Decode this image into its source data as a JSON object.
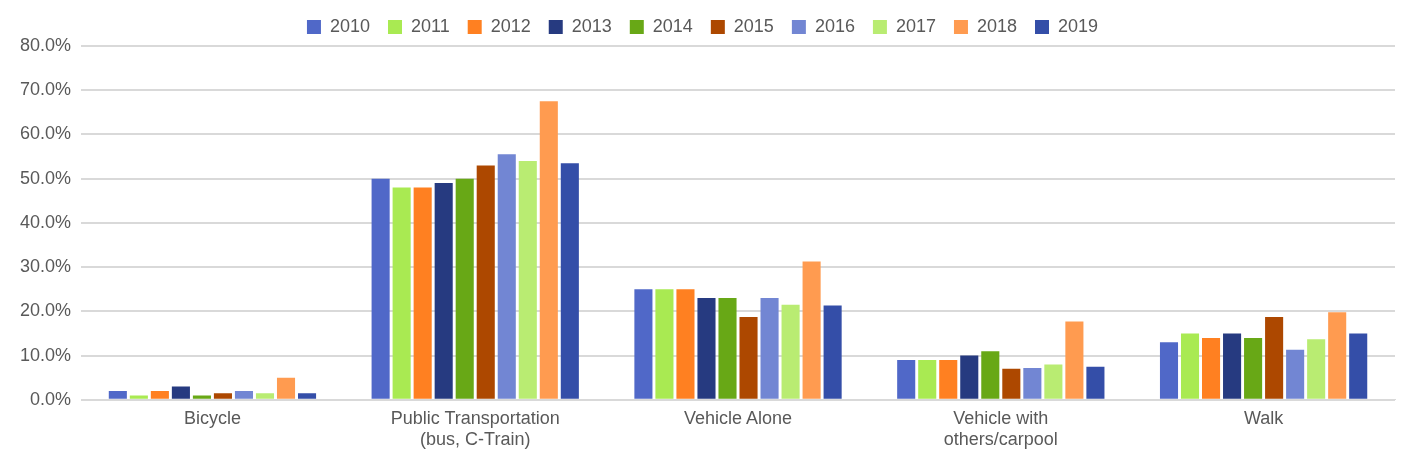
{
  "chart_data": {
    "type": "bar",
    "categories": [
      "Bicycle",
      "Public Transportation (bus, C-Train)",
      "Vehicle Alone",
      "Vehicle with others/carpool",
      "Walk"
    ],
    "series": [
      {
        "name": "2010",
        "color": "#5068c8",
        "values": [
          2,
          50,
          25,
          9,
          13
        ]
      },
      {
        "name": "2011",
        "color": "#a9ea52",
        "values": [
          1,
          48,
          25,
          9,
          15
        ]
      },
      {
        "name": "2012",
        "color": "#ff8021",
        "values": [
          2,
          48,
          25,
          9,
          14
        ]
      },
      {
        "name": "2013",
        "color": "#263a80",
        "values": [
          3,
          49,
          23,
          10,
          15
        ]
      },
      {
        "name": "2014",
        "color": "#68a816",
        "values": [
          1,
          50,
          23,
          11,
          14
        ]
      },
      {
        "name": "2015",
        "color": "#ad4800",
        "values": [
          1.5,
          53,
          18.7,
          7,
          18.7
        ]
      },
      {
        "name": "2016",
        "color": "#7286d3",
        "values": [
          2,
          55.5,
          23,
          7.2,
          11.3
        ]
      },
      {
        "name": "2017",
        "color": "#b9ec72",
        "values": [
          1.5,
          54,
          21.5,
          8,
          13.7
        ]
      },
      {
        "name": "2018",
        "color": "#ff9b50",
        "values": [
          5,
          67.5,
          31.3,
          17.7,
          19.8
        ]
      },
      {
        "name": "2019",
        "color": "#344ea8",
        "values": [
          1.5,
          53.5,
          21.3,
          7.5,
          15
        ]
      }
    ],
    "ylim": [
      0,
      80
    ],
    "yticks": [
      {
        "value": 0,
        "label": "0.0%"
      },
      {
        "value": 10,
        "label": "10.0%"
      },
      {
        "value": 20,
        "label": "20.0%"
      },
      {
        "value": 30,
        "label": "30.0%"
      },
      {
        "value": 40,
        "label": "40.0%"
      },
      {
        "value": 50,
        "label": "50.0%"
      },
      {
        "value": 60,
        "label": "60.0%"
      },
      {
        "value": 70,
        "label": "70.0%"
      },
      {
        "value": 80,
        "label": "80.0%"
      }
    ],
    "grid": "y",
    "legend": "top"
  }
}
